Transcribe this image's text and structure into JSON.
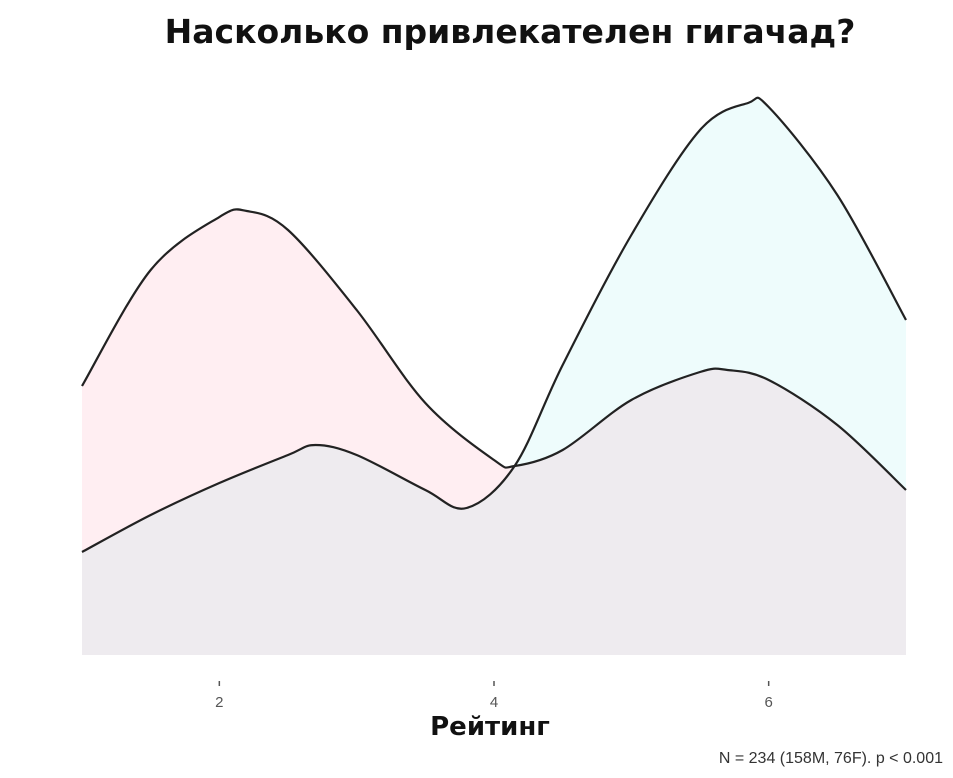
{
  "chart_data": {
    "type": "area",
    "title": "Насколько привлекателен гигачад?",
    "xlabel": "Рейтинг",
    "ylabel": "",
    "caption": "N = 234 (158M, 76F). p < 0.001",
    "xlim": [
      1,
      7
    ],
    "ylim": [
      0,
      0.6
    ],
    "xticks": [
      "2",
      "4",
      "6"
    ],
    "grid": false,
    "series": [
      {
        "color": "#F8766D",
        "fill": "#ffeef2",
        "x": [
          1.0,
          1.5,
          2.0,
          2.2,
          2.5,
          3.0,
          3.5,
          4.0,
          4.15,
          4.5,
          5.0,
          5.5,
          5.7,
          6.0,
          6.5,
          7.0
        ],
        "y": [
          0.269,
          0.385,
          0.438,
          0.444,
          0.425,
          0.345,
          0.252,
          0.195,
          0.189,
          0.205,
          0.255,
          0.283,
          0.285,
          0.275,
          0.23,
          0.165
        ]
      },
      {
        "color": "#00BFC4",
        "fill": "#eefcfc",
        "x": [
          1.0,
          1.5,
          2.0,
          2.5,
          2.7,
          3.0,
          3.5,
          3.8,
          4.15,
          4.5,
          5.0,
          5.5,
          5.85,
          6.0,
          6.5,
          7.0
        ],
        "y": [
          0.103,
          0.14,
          0.172,
          0.2,
          0.21,
          0.2,
          0.165,
          0.147,
          0.189,
          0.29,
          0.42,
          0.525,
          0.552,
          0.548,
          0.46,
          0.335
        ]
      }
    ]
  }
}
